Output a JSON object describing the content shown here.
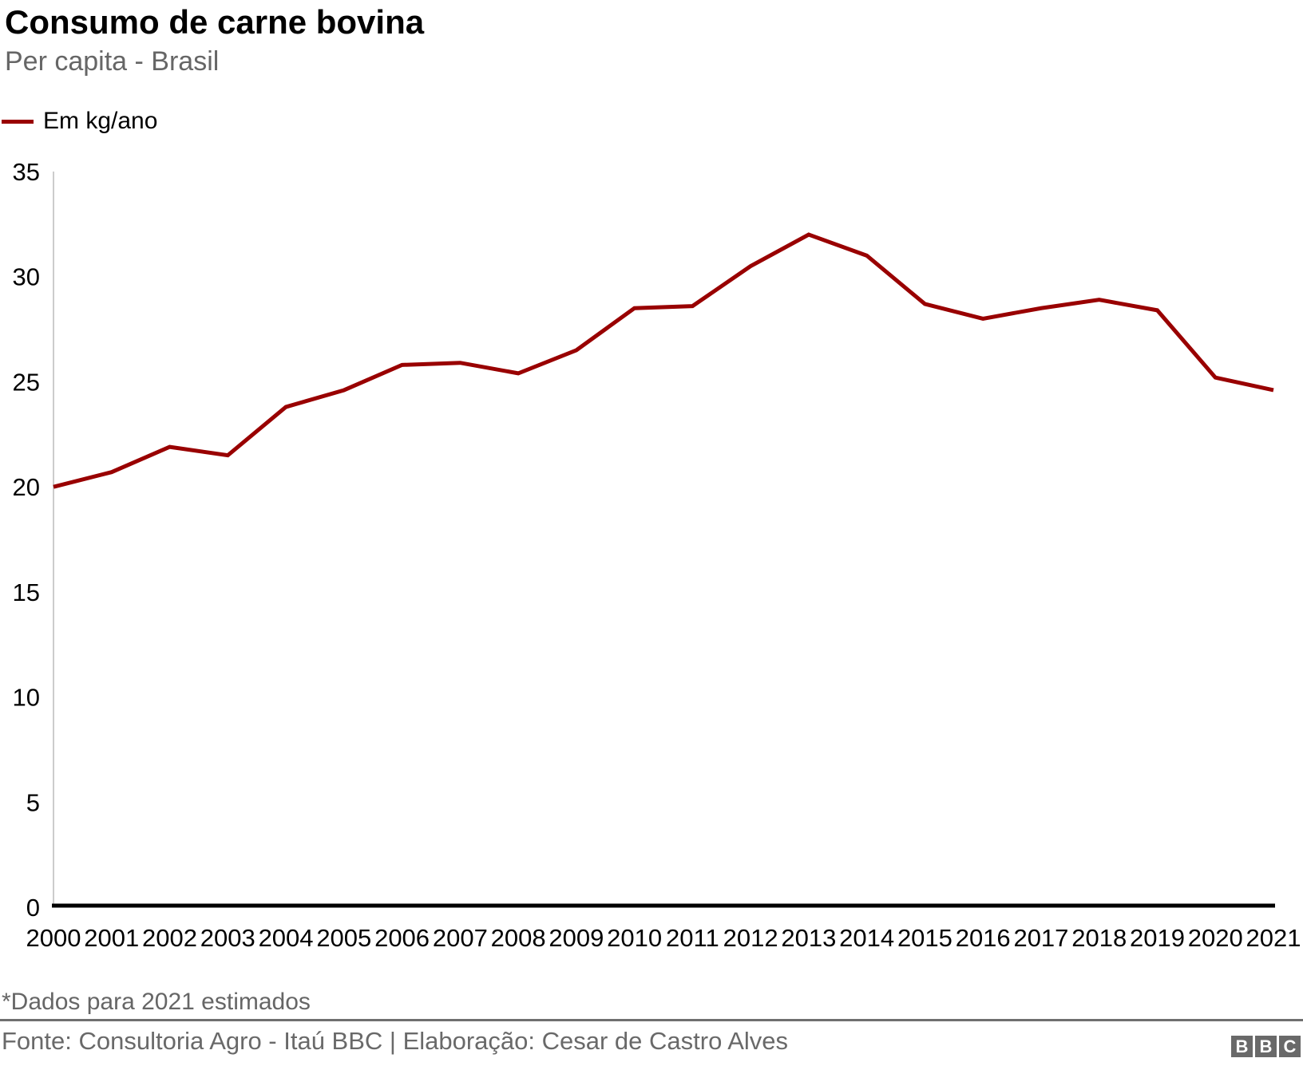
{
  "header": {
    "title": "Consumo de carne bovina",
    "subtitle": "Per capita - Brasil"
  },
  "legend": {
    "label": "Em kg/ano",
    "color": "#990000"
  },
  "chart_data": {
    "type": "line",
    "title": "Consumo de carne bovina",
    "subtitle": "Per capita - Brasil",
    "x": [
      2000,
      2001,
      2002,
      2003,
      2004,
      2005,
      2006,
      2007,
      2008,
      2009,
      2010,
      2011,
      2012,
      2013,
      2014,
      2015,
      2016,
      2017,
      2018,
      2019,
      2020,
      2021
    ],
    "series": [
      {
        "name": "Em kg/ano",
        "color": "#990000",
        "values": [
          20.0,
          20.7,
          21.9,
          21.5,
          23.8,
          24.6,
          25.8,
          25.9,
          25.4,
          26.5,
          28.5,
          28.6,
          30.5,
          32.0,
          31.0,
          28.7,
          28.0,
          28.5,
          28.9,
          28.4,
          25.2,
          24.6
        ]
      }
    ],
    "xlabel": "",
    "ylabel": "Em kg/ano",
    "ylim": [
      0,
      35
    ],
    "yticks": [
      0,
      5,
      10,
      15,
      20,
      25,
      30,
      35
    ],
    "grid": false,
    "legend_position": "top-left",
    "tick_label_color": "#000000",
    "xaxis_line_color": "#000000",
    "yaxis_line_color": "#cccccc"
  },
  "footer": {
    "note": "*Dados para 2021 estimados",
    "source": "Fonte: Consultoria Agro - Itaú BBC | Elaboração: Cesar de Castro Alves",
    "logo": {
      "letters": [
        "B",
        "B",
        "C"
      ],
      "background": "#696969"
    }
  }
}
